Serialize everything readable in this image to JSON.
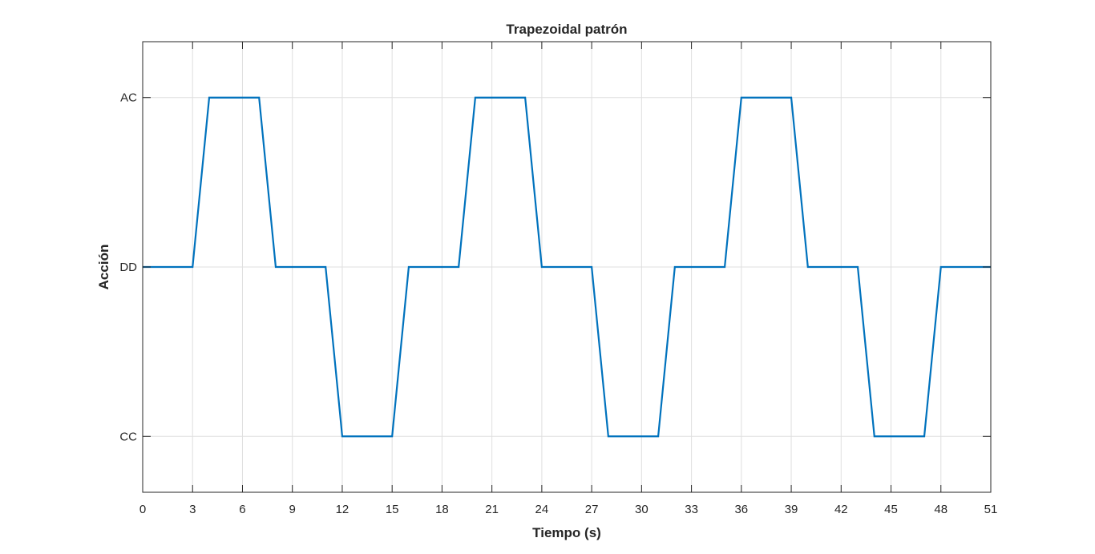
{
  "chart_data": {
    "type": "line",
    "title": "Trapezoidal patrón",
    "xlabel": "Tiempo (s)",
    "ylabel": "Acción",
    "xlim": [
      0,
      51
    ],
    "ylim": [
      -1.33,
      1.33
    ],
    "grid": true,
    "x_ticks": [
      0,
      3,
      6,
      9,
      12,
      15,
      18,
      21,
      24,
      27,
      30,
      33,
      36,
      39,
      42,
      45,
      48,
      51
    ],
    "y_ticks": [
      {
        "value": 1,
        "label": "AC"
      },
      {
        "value": 0,
        "label": "DD"
      },
      {
        "value": -1,
        "label": "CC"
      }
    ],
    "series": [
      {
        "color": "#0072BD",
        "x": [
          0,
          3,
          4,
          7,
          8,
          11,
          12,
          15,
          16,
          19,
          20,
          23,
          24,
          27,
          28,
          31,
          32,
          35,
          36,
          39,
          40,
          43,
          44,
          47,
          48,
          51
        ],
        "y": [
          0,
          0,
          1,
          1,
          0,
          0,
          -1,
          -1,
          0,
          0,
          1,
          1,
          0,
          0,
          -1,
          -1,
          0,
          0,
          1,
          1,
          0,
          0,
          -1,
          -1,
          0,
          0
        ]
      }
    ]
  }
}
